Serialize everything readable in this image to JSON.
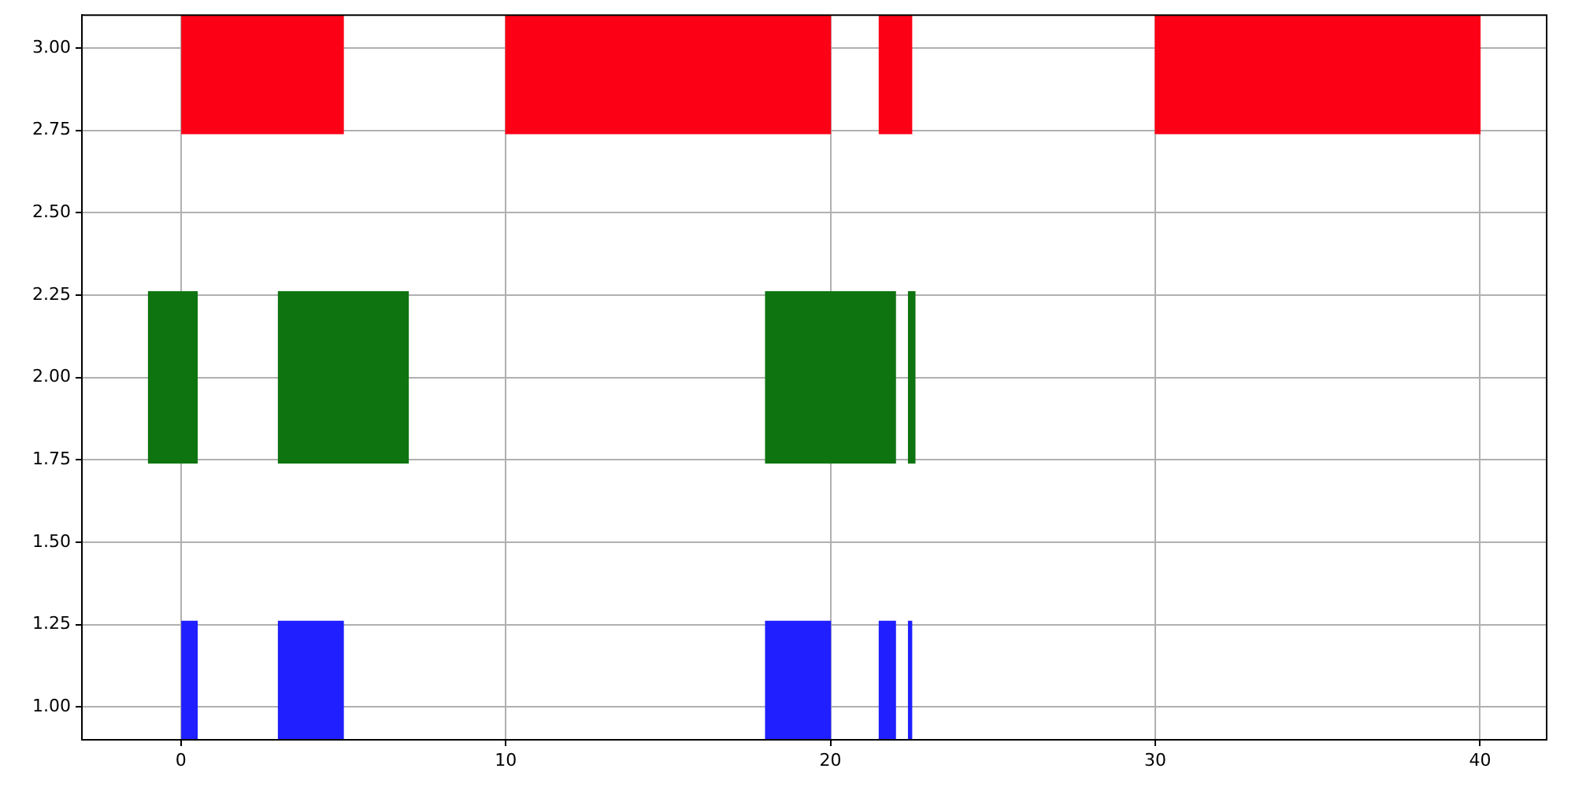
{
  "chart_data": {
    "type": "bar",
    "orientation": "horizontal",
    "xlim": [
      -3.05,
      42.05
    ],
    "xticks": [
      0,
      10,
      20,
      30,
      40
    ],
    "ylim": [
      0.9,
      3.1
    ],
    "yticks": [
      {
        "value": 1,
        "label": "1.00"
      },
      {
        "value": 1.25,
        "label": "1.25"
      },
      {
        "value": 1.5,
        "label": "1.50"
      },
      {
        "value": 1.75,
        "label": "1.75"
      },
      {
        "value": 2,
        "label": "2.00"
      },
      {
        "value": 2.25,
        "label": "2.25"
      },
      {
        "value": 2.5,
        "label": "2.50"
      },
      {
        "value": 2.75,
        "label": "2.75"
      },
      {
        "value": 3,
        "label": "3.00"
      }
    ],
    "grid": true,
    "series": [
      {
        "color": "#1f1fff",
        "x": [
          1
        ],
        "base": [
          0
        ],
        "values": [
          0.5
        ]
      },
      {
        "color": "#1f1fff",
        "x": [
          1
        ],
        "base": [
          3
        ],
        "values": [
          2
        ]
      },
      {
        "color": "#1f1fff",
        "x": [
          1
        ],
        "base": [
          18
        ],
        "values": [
          2
        ]
      },
      {
        "color": "#1f1fff",
        "x": [
          1
        ],
        "base": [
          21.5
        ],
        "values": [
          0.5
        ]
      },
      {
        "color": "#1f1fff",
        "x": [
          1
        ],
        "base": [
          22.4
        ],
        "values": [
          0.1
        ]
      },
      {
        "color": "#0e7410",
        "x": [
          2
        ],
        "base": [
          -1
        ],
        "values": [
          1.5
        ]
      },
      {
        "color": "#0e7410",
        "x": [
          2
        ],
        "base": [
          3
        ],
        "values": [
          4
        ]
      },
      {
        "color": "#0e7410",
        "x": [
          2
        ],
        "base": [
          18
        ],
        "values": [
          4
        ]
      },
      {
        "color": "#0e7410",
        "x": [
          2
        ],
        "base": [
          22.4
        ],
        "values": [
          0.2
        ]
      },
      {
        "color": "#fc0016",
        "x": [
          3
        ],
        "base": [
          0
        ],
        "values": [
          5
        ]
      },
      {
        "color": "#fc0016",
        "x": [
          3
        ],
        "base": [
          10
        ],
        "values": [
          10
        ]
      },
      {
        "color": "#fc0016",
        "x": [
          3
        ],
        "base": [
          21.5
        ],
        "values": [
          1
        ]
      },
      {
        "color": "#fc0016",
        "x": [
          3
        ],
        "base": [
          30
        ],
        "values": [
          10
        ]
      }
    ]
  }
}
